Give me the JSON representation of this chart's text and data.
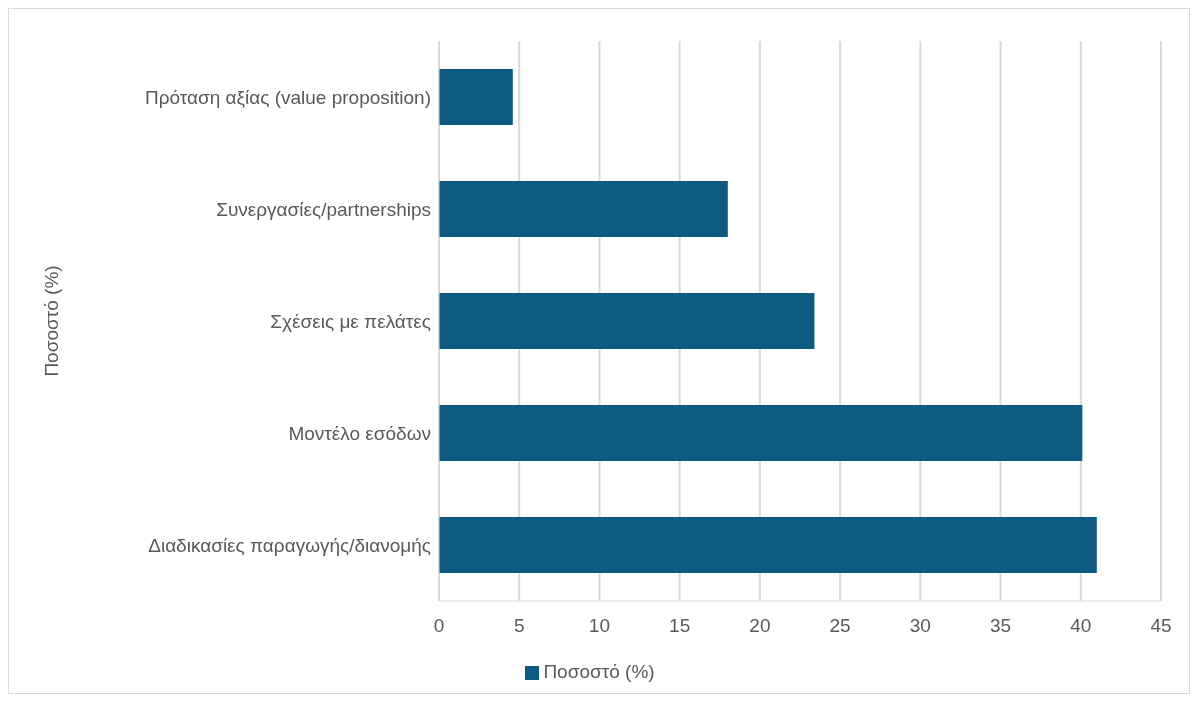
{
  "chart_data": {
    "type": "bar",
    "orientation": "horizontal",
    "ylabel": "Ποσοστό (%)",
    "categories": [
      "Πρόταση αξίας (value proposition)",
      "Συνεργασίες/partnerships",
      "Σχέσεις με πελάτες",
      "Μοντέλο εσόδων",
      "Διαδικασίες παραγωγής/διανομής"
    ],
    "series": [
      {
        "name": "Ποσοστό (%)",
        "color": "#0e5a80",
        "values": [
          4.6,
          18,
          23.4,
          40.1,
          41
        ]
      }
    ],
    "xlim": [
      0,
      45
    ],
    "xticks": [
      0,
      5,
      10,
      15,
      20,
      25,
      30,
      35,
      40,
      45
    ],
    "grid": "x",
    "legend": "bottom"
  }
}
